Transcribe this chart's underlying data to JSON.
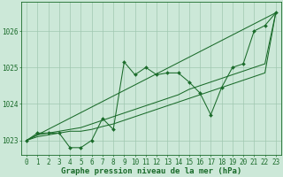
{
  "background_color": "#cce8d8",
  "grid_color": "#a0c8b0",
  "line_color": "#1a6b2a",
  "marker_color": "#1a6b2a",
  "xlabel": "Graphe pression niveau de la mer (hPa)",
  "xlim": [
    -0.5,
    23.5
  ],
  "ylim": [
    1022.6,
    1026.8
  ],
  "yticks": [
    1023,
    1024,
    1025,
    1026
  ],
  "xticks": [
    0,
    1,
    2,
    3,
    4,
    5,
    6,
    7,
    8,
    9,
    10,
    11,
    12,
    13,
    14,
    15,
    16,
    17,
    18,
    19,
    20,
    21,
    22,
    23
  ],
  "line1_y": [
    1023.0,
    1023.2,
    1023.2,
    1023.2,
    1022.8,
    1022.8,
    1023.0,
    1023.6,
    1023.3,
    1025.15,
    1024.8,
    1025.0,
    1024.8,
    1024.85,
    1024.85,
    1024.6,
    1024.3,
    1023.7,
    1024.45,
    1025.0,
    1025.1,
    1026.0,
    1026.15,
    1026.5
  ],
  "line2_y": [
    1023.0,
    1023.1,
    1023.15,
    1023.2,
    1023.25,
    1023.25,
    1023.3,
    1023.38,
    1023.45,
    1023.55,
    1023.65,
    1023.75,
    1023.85,
    1023.95,
    1024.05,
    1024.15,
    1024.25,
    1024.35,
    1024.45,
    1024.55,
    1024.65,
    1024.75,
    1024.85,
    1026.5
  ],
  "line3_y": [
    1023.0,
    1023.15,
    1023.2,
    1023.25,
    1023.3,
    1023.35,
    1023.45,
    1023.55,
    1023.65,
    1023.75,
    1023.85,
    1023.95,
    1024.05,
    1024.15,
    1024.25,
    1024.4,
    1024.5,
    1024.6,
    1024.7,
    1024.8,
    1024.9,
    1025.0,
    1025.1,
    1026.5
  ],
  "line4_x": [
    0,
    23
  ],
  "line4_y": [
    1023.0,
    1026.5
  ],
  "tick_fontsize": 5.5,
  "xlabel_fontsize": 6.5
}
